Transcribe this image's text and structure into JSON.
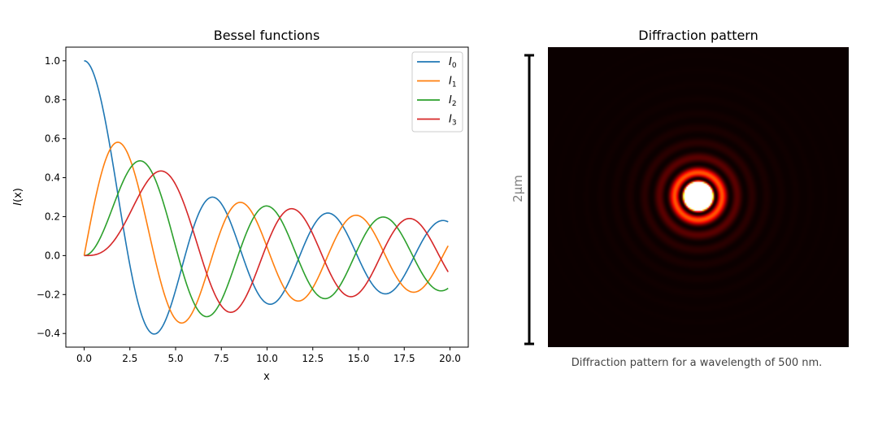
{
  "chart_data": [
    {
      "type": "line",
      "title": "Bessel functions",
      "xlabel": "x",
      "ylabel": "I(x)",
      "xlim": [
        -1,
        21
      ],
      "ylim": [
        -0.47,
        1.07
      ],
      "grid": false,
      "legend_placement": "top-right",
      "xticks": [
        0.0,
        2.5,
        5.0,
        7.5,
        10.0,
        12.5,
        15.0,
        17.5,
        20.0
      ],
      "xtick_labels": [
        "0.0",
        "2.5",
        "5.0",
        "7.5",
        "10.0",
        "12.5",
        "15.0",
        "17.5",
        "20.0"
      ],
      "yticks": [
        -0.4,
        -0.2,
        0.0,
        0.2,
        0.4,
        0.6,
        0.8,
        1.0
      ],
      "ytick_labels": [
        "−0.4",
        "−0.2",
        "0.0",
        "0.2",
        "0.4",
        "0.6",
        "0.8",
        "1.0"
      ],
      "x_range": [
        0,
        19.9
      ],
      "series": [
        {
          "name": "I",
          "subscript": "0",
          "order": 0,
          "color": "#1f77b4"
        },
        {
          "name": "I",
          "subscript": "1",
          "order": 1,
          "color": "#ff7f0e"
        },
        {
          "name": "I",
          "subscript": "2",
          "order": 2,
          "color": "#2ca02c"
        },
        {
          "name": "I",
          "subscript": "3",
          "order": 3,
          "color": "#d62728"
        }
      ]
    },
    {
      "type": "heatmap",
      "title": "Diffraction pattern",
      "caption": "Diffraction pattern for a wavelength of 500 nm.",
      "scale_label": "2μm",
      "colormap": "hot",
      "pattern": "concentric rings (Airy pattern)"
    }
  ]
}
